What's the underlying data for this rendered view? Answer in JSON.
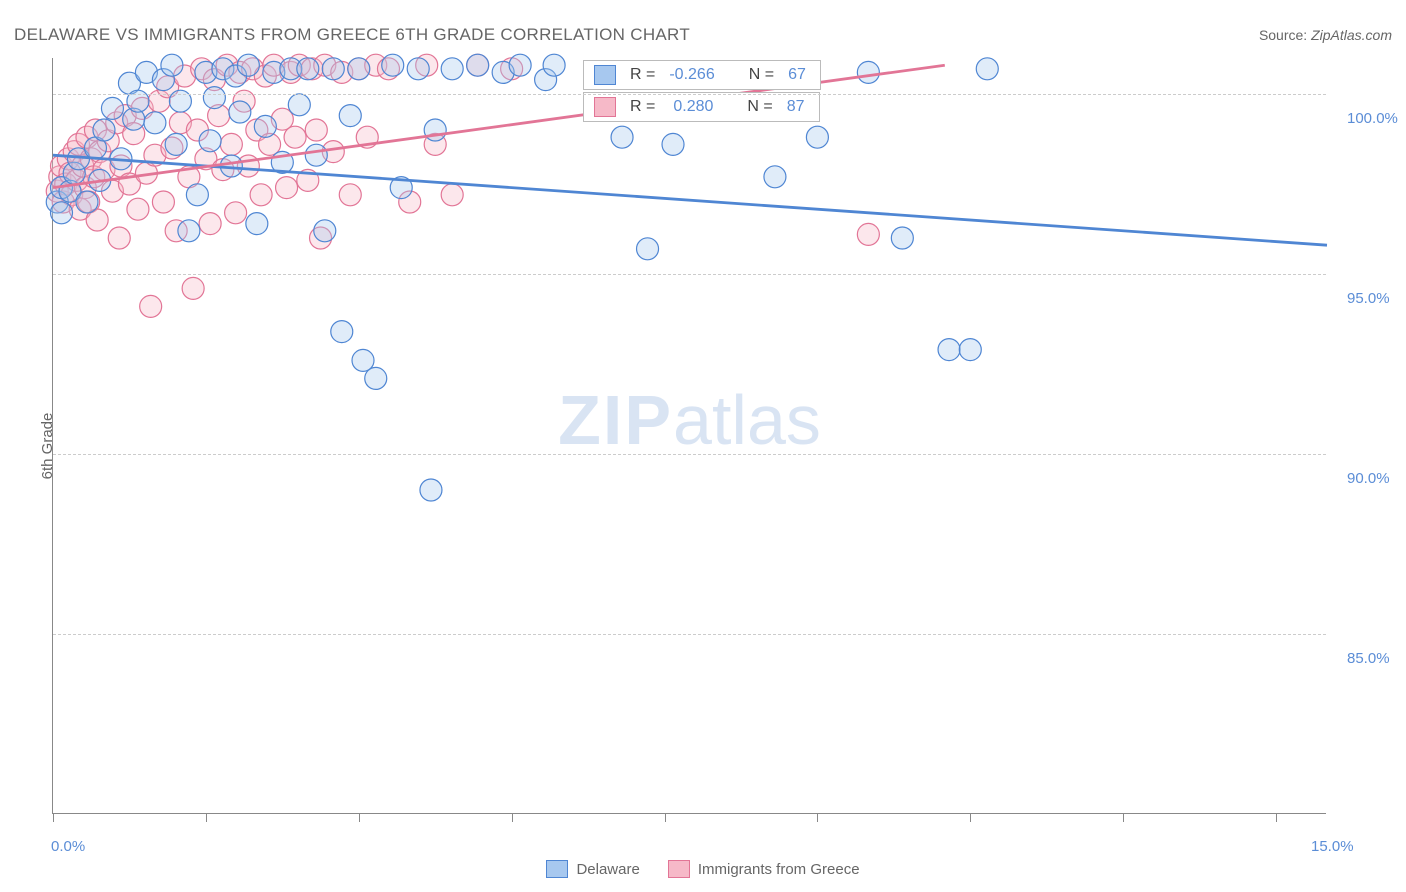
{
  "title": "DELAWARE VS IMMIGRANTS FROM GREECE 6TH GRADE CORRELATION CHART",
  "source_label": "Source:",
  "source_value": "ZipAtlas.com",
  "ylabel": "6th Grade",
  "watermark": {
    "bold": "ZIP",
    "light": "atlas"
  },
  "chart": {
    "type": "scatter",
    "xlim": [
      0,
      15
    ],
    "ylim": [
      80,
      101
    ],
    "xtick_positions": [
      0,
      1.8,
      3.6,
      5.4,
      7.2,
      9.0,
      10.8,
      12.6,
      14.4
    ],
    "xtick_labels": {
      "first": "0.0%",
      "last": "15.0%"
    },
    "ytick_positions": [
      85,
      90,
      95,
      100
    ],
    "ytick_labels": [
      "85.0%",
      "90.0%",
      "95.0%",
      "100.0%"
    ],
    "grid_color": "#cccccc",
    "axis_color": "#888888",
    "marker_radius": 11,
    "marker_stroke_width": 1.2,
    "fill_opacity": 0.35,
    "line_width": 2.8,
    "series": [
      {
        "name": "Delaware",
        "color_fill": "#a7c8ef",
        "color_stroke": "#4f86d3",
        "r_value": "-0.266",
        "n_value": "67",
        "regression": {
          "x1": 0,
          "y1": 98.3,
          "x2": 15,
          "y2": 95.8
        },
        "points": [
          [
            0.05,
            97.0
          ],
          [
            0.1,
            96.7
          ],
          [
            0.1,
            97.4
          ],
          [
            0.2,
            97.3
          ],
          [
            0.25,
            97.8
          ],
          [
            0.3,
            98.2
          ],
          [
            0.4,
            97.0
          ],
          [
            0.5,
            98.5
          ],
          [
            0.55,
            97.6
          ],
          [
            0.6,
            99.0
          ],
          [
            0.7,
            99.6
          ],
          [
            0.8,
            98.2
          ],
          [
            0.9,
            100.3
          ],
          [
            0.95,
            99.3
          ],
          [
            1.0,
            99.8
          ],
          [
            1.1,
            100.6
          ],
          [
            1.2,
            99.2
          ],
          [
            1.3,
            100.4
          ],
          [
            1.4,
            100.8
          ],
          [
            1.45,
            98.6
          ],
          [
            1.5,
            99.8
          ],
          [
            1.6,
            96.2
          ],
          [
            1.7,
            97.2
          ],
          [
            1.8,
            100.6
          ],
          [
            1.85,
            98.7
          ],
          [
            1.9,
            99.9
          ],
          [
            2.0,
            100.7
          ],
          [
            2.1,
            98.0
          ],
          [
            2.15,
            100.5
          ],
          [
            2.2,
            99.5
          ],
          [
            2.3,
            100.8
          ],
          [
            2.4,
            96.4
          ],
          [
            2.5,
            99.1
          ],
          [
            2.6,
            100.6
          ],
          [
            2.7,
            98.1
          ],
          [
            2.8,
            100.7
          ],
          [
            2.9,
            99.7
          ],
          [
            3.0,
            100.7
          ],
          [
            3.1,
            98.3
          ],
          [
            3.2,
            96.2
          ],
          [
            3.3,
            100.7
          ],
          [
            3.4,
            93.4
          ],
          [
            3.5,
            99.4
          ],
          [
            3.6,
            100.7
          ],
          [
            3.65,
            92.6
          ],
          [
            3.8,
            92.1
          ],
          [
            4.0,
            100.8
          ],
          [
            4.1,
            97.4
          ],
          [
            4.3,
            100.7
          ],
          [
            4.45,
            89.0
          ],
          [
            4.5,
            99.0
          ],
          [
            4.7,
            100.7
          ],
          [
            5.0,
            100.8
          ],
          [
            5.3,
            100.6
          ],
          [
            5.5,
            100.8
          ],
          [
            5.8,
            100.4
          ],
          [
            5.9,
            100.8
          ],
          [
            6.7,
            98.8
          ],
          [
            7.0,
            95.7
          ],
          [
            7.3,
            98.6
          ],
          [
            8.5,
            97.7
          ],
          [
            9.0,
            98.8
          ],
          [
            9.6,
            100.6
          ],
          [
            10.0,
            96.0
          ],
          [
            10.55,
            92.9
          ],
          [
            10.8,
            92.9
          ],
          [
            11.0,
            100.7
          ]
        ]
      },
      {
        "name": "Immigrants from Greece",
        "color_fill": "#f6b9c8",
        "color_stroke": "#e27596",
        "r_value": "0.280",
        "n_value": "87",
        "regression": {
          "x1": 0,
          "y1": 97.4,
          "x2": 10.5,
          "y2": 100.8
        },
        "points": [
          [
            0.05,
            97.3
          ],
          [
            0.08,
            97.7
          ],
          [
            0.1,
            98.0
          ],
          [
            0.12,
            97.0
          ],
          [
            0.15,
            97.5
          ],
          [
            0.18,
            98.2
          ],
          [
            0.2,
            97.8
          ],
          [
            0.22,
            97.2
          ],
          [
            0.25,
            98.4
          ],
          [
            0.28,
            97.6
          ],
          [
            0.3,
            98.6
          ],
          [
            0.32,
            96.8
          ],
          [
            0.35,
            98.0
          ],
          [
            0.38,
            97.4
          ],
          [
            0.4,
            98.8
          ],
          [
            0.42,
            97.0
          ],
          [
            0.45,
            98.2
          ],
          [
            0.48,
            97.7
          ],
          [
            0.5,
            99.0
          ],
          [
            0.52,
            96.5
          ],
          [
            0.55,
            98.4
          ],
          [
            0.6,
            97.9
          ],
          [
            0.65,
            98.7
          ],
          [
            0.7,
            97.3
          ],
          [
            0.75,
            99.2
          ],
          [
            0.78,
            96.0
          ],
          [
            0.8,
            98.0
          ],
          [
            0.85,
            99.4
          ],
          [
            0.9,
            97.5
          ],
          [
            0.95,
            98.9
          ],
          [
            1.0,
            96.8
          ],
          [
            1.05,
            99.6
          ],
          [
            1.1,
            97.8
          ],
          [
            1.15,
            94.1
          ],
          [
            1.2,
            98.3
          ],
          [
            1.25,
            99.8
          ],
          [
            1.3,
            97.0
          ],
          [
            1.35,
            100.2
          ],
          [
            1.4,
            98.5
          ],
          [
            1.45,
            96.2
          ],
          [
            1.5,
            99.2
          ],
          [
            1.55,
            100.5
          ],
          [
            1.6,
            97.7
          ],
          [
            1.65,
            94.6
          ],
          [
            1.7,
            99.0
          ],
          [
            1.75,
            100.7
          ],
          [
            1.8,
            98.2
          ],
          [
            1.85,
            96.4
          ],
          [
            1.9,
            100.4
          ],
          [
            1.95,
            99.4
          ],
          [
            2.0,
            97.9
          ],
          [
            2.05,
            100.8
          ],
          [
            2.1,
            98.6
          ],
          [
            2.15,
            96.7
          ],
          [
            2.2,
            100.6
          ],
          [
            2.25,
            99.8
          ],
          [
            2.3,
            98.0
          ],
          [
            2.35,
            100.7
          ],
          [
            2.4,
            99.0
          ],
          [
            2.45,
            97.2
          ],
          [
            2.5,
            100.5
          ],
          [
            2.55,
            98.6
          ],
          [
            2.6,
            100.8
          ],
          [
            2.7,
            99.3
          ],
          [
            2.75,
            97.4
          ],
          [
            2.8,
            100.6
          ],
          [
            2.85,
            98.8
          ],
          [
            2.9,
            100.8
          ],
          [
            3.0,
            97.6
          ],
          [
            3.05,
            100.7
          ],
          [
            3.1,
            99.0
          ],
          [
            3.15,
            96.0
          ],
          [
            3.2,
            100.8
          ],
          [
            3.3,
            98.4
          ],
          [
            3.4,
            100.6
          ],
          [
            3.5,
            97.2
          ],
          [
            3.6,
            100.7
          ],
          [
            3.7,
            98.8
          ],
          [
            3.8,
            100.8
          ],
          [
            3.95,
            100.7
          ],
          [
            4.2,
            97.0
          ],
          [
            4.4,
            100.8
          ],
          [
            4.5,
            98.6
          ],
          [
            4.7,
            97.2
          ],
          [
            5.0,
            100.8
          ],
          [
            5.4,
            100.7
          ],
          [
            9.6,
            96.1
          ]
        ]
      }
    ]
  },
  "legend_top": {
    "row1": {
      "swatch_series": 0,
      "r_label": "R =",
      "n_label": "N ="
    },
    "row2": {
      "swatch_series": 1,
      "r_label": "R =",
      "n_label": "N ="
    }
  },
  "footer_legend": {
    "item1_series": 0,
    "item2_series": 1
  }
}
